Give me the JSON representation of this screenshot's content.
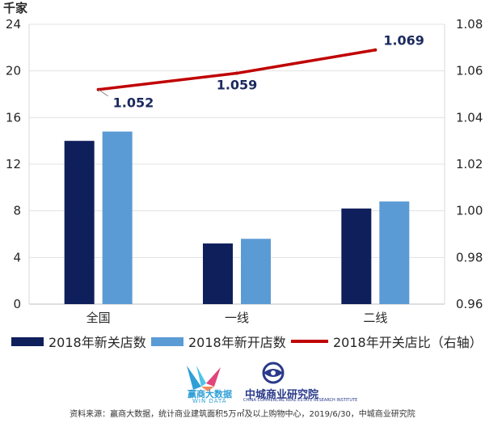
{
  "chart_data": {
    "type": "bar+line",
    "left_axis": {
      "unit_label": "千家",
      "ticks": [
        0,
        4,
        8,
        12,
        16,
        20,
        24
      ],
      "ylim": [
        0,
        24
      ]
    },
    "right_axis": {
      "ticks": [
        "0.96",
        "0.98",
        "1.00",
        "1.02",
        "1.04",
        "1.06",
        "1.08"
      ],
      "ylim": [
        0.96,
        1.08
      ]
    },
    "categories": [
      "全国",
      "一线",
      "二线"
    ],
    "series": [
      {
        "name": "2018年新关店数",
        "type": "bar",
        "color": "#0f1f5c",
        "axis": "left",
        "values": [
          14.0,
          5.2,
          8.2
        ]
      },
      {
        "name": "2018年新开店数",
        "type": "bar",
        "color": "#5b9bd5",
        "axis": "left",
        "values": [
          14.8,
          5.6,
          8.8
        ]
      },
      {
        "name": "2018年开关店比（右轴）",
        "type": "line",
        "color": "#c00000",
        "axis": "right",
        "values": [
          1.052,
          1.059,
          1.069
        ],
        "labels": [
          "1.052",
          "1.059",
          "1.069"
        ]
      }
    ],
    "grid": true
  },
  "logos": {
    "win_cn": "赢商大数据",
    "win_en": "WIN DATA",
    "zc_cn": "中城商业研究院",
    "zc_en": "CHINA COMMERCIAL REAL ESTATE RESEARCH INSTITUTE"
  },
  "source": "资料来源：赢商大数据，统计商业建筑面积5万㎡及以上购物中心，2019/6/30，中城商业研究院"
}
